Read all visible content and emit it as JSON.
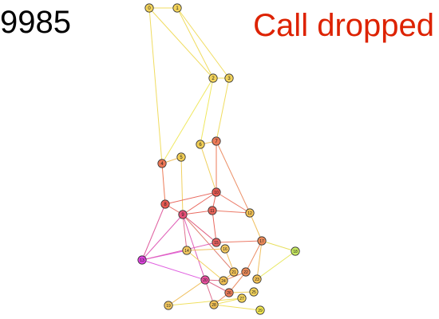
{
  "counter": "9985",
  "status": {
    "text": "Call dropped",
    "color": "#dd2200"
  },
  "node_stroke": "#333333",
  "nodes": [
    {
      "id": 0,
      "label": "0",
      "color": "#f3d35a"
    },
    {
      "id": 1,
      "label": "1",
      "color": "#f3d35a"
    },
    {
      "id": 2,
      "label": "2",
      "color": "#f3d35a"
    },
    {
      "id": 3,
      "label": "3",
      "color": "#f3d35a"
    },
    {
      "id": 4,
      "label": "4",
      "color": "#ec7655"
    },
    {
      "id": 5,
      "label": "5",
      "color": "#f3cf55"
    },
    {
      "id": 6,
      "label": "6",
      "color": "#f3cf55"
    },
    {
      "id": 7,
      "label": "7",
      "color": "#ec7b58"
    },
    {
      "id": 8,
      "label": "8",
      "color": "#e95a52"
    },
    {
      "id": 9,
      "label": "9",
      "color": "#e94f77"
    },
    {
      "id": 10,
      "label": "10",
      "color": "#e95a52"
    },
    {
      "id": 11,
      "label": "11",
      "color": "#e9655a"
    },
    {
      "id": 12,
      "label": "12",
      "color": "#f3c255"
    },
    {
      "id": 13,
      "label": "13",
      "color": "#dc3fdc"
    },
    {
      "id": 14,
      "label": "14",
      "color": "#f3c860"
    },
    {
      "id": 15,
      "label": "15",
      "color": "#e9605f"
    },
    {
      "id": 16,
      "label": "16",
      "color": "#f3c860"
    },
    {
      "id": 17,
      "label": "17",
      "color": "#ec8a58"
    },
    {
      "id": 18,
      "label": "18",
      "color": "#c8ea60"
    },
    {
      "id": 19,
      "label": "19",
      "color": "#f3c860"
    },
    {
      "id": 20,
      "label": "20",
      "color": "#e94f9f"
    },
    {
      "id": 21,
      "label": "21",
      "color": "#f3c255"
    },
    {
      "id": 22,
      "label": "22",
      "color": "#ec8a58"
    },
    {
      "id": 23,
      "label": "23",
      "color": "#f3c255"
    },
    {
      "id": 24,
      "label": "24",
      "color": "#f3c255"
    },
    {
      "id": 25,
      "label": "25",
      "color": "#f3d35a"
    },
    {
      "id": 26,
      "label": "26",
      "color": "#ec7b58"
    },
    {
      "id": 27,
      "label": "27",
      "color": "#f3d35a"
    },
    {
      "id": 28,
      "label": "28",
      "color": "#f3c255"
    },
    {
      "id": 29,
      "label": "29",
      "color": "#f3e850"
    }
  ],
  "edges": [
    {
      "from": 0,
      "to": 1,
      "color": "#f0dc60"
    },
    {
      "from": 0,
      "to": 2,
      "color": "#f0dc60"
    },
    {
      "from": 0,
      "to": 4,
      "color": "#f0dc60"
    },
    {
      "from": 1,
      "to": 2,
      "color": "#f0dc60"
    },
    {
      "from": 1,
      "to": 3,
      "color": "#f0dc60"
    },
    {
      "from": 2,
      "to": 3,
      "color": "#f0dc60"
    },
    {
      "from": 2,
      "to": 4,
      "color": "#f0e860"
    },
    {
      "from": 2,
      "to": 6,
      "color": "#f0e860"
    },
    {
      "from": 3,
      "to": 7,
      "color": "#f0dc60"
    },
    {
      "from": 4,
      "to": 5,
      "color": "#f0c060"
    },
    {
      "from": 4,
      "to": 8,
      "color": "#ec7b58"
    },
    {
      "from": 5,
      "to": 9,
      "color": "#f0d060"
    },
    {
      "from": 6,
      "to": 7,
      "color": "#f0c060"
    },
    {
      "from": 6,
      "to": 10,
      "color": "#f0d060"
    },
    {
      "from": 7,
      "to": 10,
      "color": "#ec7b58"
    },
    {
      "from": 7,
      "to": 12,
      "color": "#ec9068"
    },
    {
      "from": 8,
      "to": 9,
      "color": "#e96a60"
    },
    {
      "from": 8,
      "to": 10,
      "color": "#e96a60"
    },
    {
      "from": 8,
      "to": 13,
      "color": "#e060a0"
    },
    {
      "from": 9,
      "to": 10,
      "color": "#e96a60"
    },
    {
      "from": 9,
      "to": 11,
      "color": "#e96a60"
    },
    {
      "from": 9,
      "to": 13,
      "color": "#e060b8"
    },
    {
      "from": 9,
      "to": 14,
      "color": "#e07090"
    },
    {
      "from": 9,
      "to": 15,
      "color": "#e06080"
    },
    {
      "from": 9,
      "to": 20,
      "color": "#e060b8"
    },
    {
      "from": 9,
      "to": 21,
      "color": "#e08070"
    },
    {
      "from": 10,
      "to": 11,
      "color": "#e96a60"
    },
    {
      "from": 10,
      "to": 12,
      "color": "#ec7b68"
    },
    {
      "from": 11,
      "to": 12,
      "color": "#ec7b68"
    },
    {
      "from": 11,
      "to": 15,
      "color": "#e96a60"
    },
    {
      "from": 12,
      "to": 17,
      "color": "#f0c060"
    },
    {
      "from": 13,
      "to": 14,
      "color": "#e060e0"
    },
    {
      "from": 13,
      "to": 15,
      "color": "#e060b8"
    },
    {
      "from": 13,
      "to": 20,
      "color": "#e060e0"
    },
    {
      "from": 14,
      "to": 16,
      "color": "#f0c060"
    },
    {
      "from": 14,
      "to": 24,
      "color": "#f0d060"
    },
    {
      "from": 15,
      "to": 17,
      "color": "#ec7b68"
    },
    {
      "from": 16,
      "to": 21,
      "color": "#f0c060"
    },
    {
      "from": 17,
      "to": 18,
      "color": "#e8e060"
    },
    {
      "from": 17,
      "to": 22,
      "color": "#ec9068"
    },
    {
      "from": 17,
      "to": 23,
      "color": "#f0c060"
    },
    {
      "from": 18,
      "to": 23,
      "color": "#e8e860"
    },
    {
      "from": 19,
      "to": 20,
      "color": "#f0c060"
    },
    {
      "from": 19,
      "to": 27,
      "color": "#f0e060"
    },
    {
      "from": 20,
      "to": 24,
      "color": "#e07090"
    },
    {
      "from": 20,
      "to": 26,
      "color": "#e07090"
    },
    {
      "from": 20,
      "to": 28,
      "color": "#e07090"
    },
    {
      "from": 21,
      "to": 24,
      "color": "#f0c060"
    },
    {
      "from": 22,
      "to": 24,
      "color": "#ec9068"
    },
    {
      "from": 22,
      "to": 26,
      "color": "#ec9068"
    },
    {
      "from": 25,
      "to": 26,
      "color": "#f0d060"
    },
    {
      "from": 26,
      "to": 28,
      "color": "#ec9068"
    },
    {
      "from": 27,
      "to": 28,
      "color": "#f0e060"
    },
    {
      "from": 28,
      "to": 29,
      "color": "#f0e060"
    }
  ]
}
